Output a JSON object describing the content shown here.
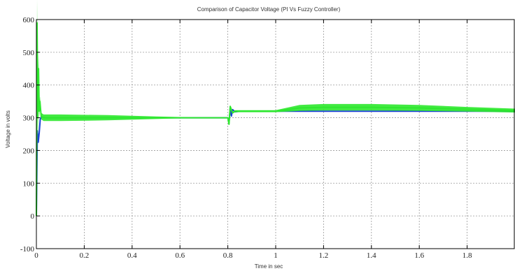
{
  "chart_data": {
    "type": "line",
    "title": "Comparison of Capacitor Voltage (PI Vs Fuzzy Controller)",
    "xlabel": "Time in sec",
    "ylabel": "Voltage in volts",
    "xlim": [
      0,
      2
    ],
    "ylim": [
      -100,
      600
    ],
    "xticks": [
      0,
      0.2,
      0.4,
      0.6,
      0.8,
      1,
      1.2,
      1.4,
      1.6,
      1.8
    ],
    "xtick_labels": [
      "0",
      "0.2",
      "0.4",
      "0.6",
      "0.8",
      "1",
      "1.2",
      "1.4",
      "1.6",
      "1.8"
    ],
    "yticks": [
      -100,
      0,
      100,
      200,
      300,
      400,
      500,
      600
    ],
    "ytick_labels": [
      "-100",
      "0",
      "100",
      "200",
      "300",
      "400",
      "500",
      "600"
    ],
    "grid": true,
    "series": [
      {
        "color": "#1a3fd6",
        "x": [
          0,
          0.004,
          0.008,
          0.012,
          0.016,
          0.02,
          0.04,
          0.1,
          0.3,
          0.5,
          0.7,
          0.8,
          0.805,
          0.81,
          0.815,
          0.82,
          0.83,
          0.85,
          0.9,
          1.0,
          1.2,
          1.5,
          1.8,
          2.0
        ],
        "y": [
          0,
          260,
          225,
          255,
          295,
          302,
          300,
          300,
          300,
          300,
          300,
          300,
          285,
          330,
          305,
          325,
          318,
          320,
          320,
          320,
          320,
          320,
          320,
          320
        ]
      },
      {
        "color": "#2ee82e",
        "x": [
          0,
          0.003,
          0.006,
          0.009,
          0.012,
          0.015,
          0.02,
          0.03,
          0.1,
          0.3,
          0.5,
          0.6,
          0.7,
          0.8,
          0.805,
          0.81,
          0.82,
          0.83,
          0.9,
          1.0,
          1.05,
          1.1,
          1.2,
          1.4,
          1.6,
          1.8,
          2.0
        ],
        "y": [
          0,
          590,
          300,
          450,
          320,
          350,
          305,
          300,
          300,
          300,
          300,
          300,
          300,
          300,
          280,
          335,
          315,
          320,
          320,
          320,
          325,
          330,
          332,
          332,
          330,
          326,
          322
        ],
        "band": [
          0,
          70,
          60,
          45,
          20,
          15,
          10,
          10,
          10,
          8,
          4,
          2,
          1,
          1,
          0,
          0,
          3,
          3,
          3,
          3,
          6,
          9,
          10,
          10,
          9,
          7,
          6
        ]
      }
    ]
  }
}
